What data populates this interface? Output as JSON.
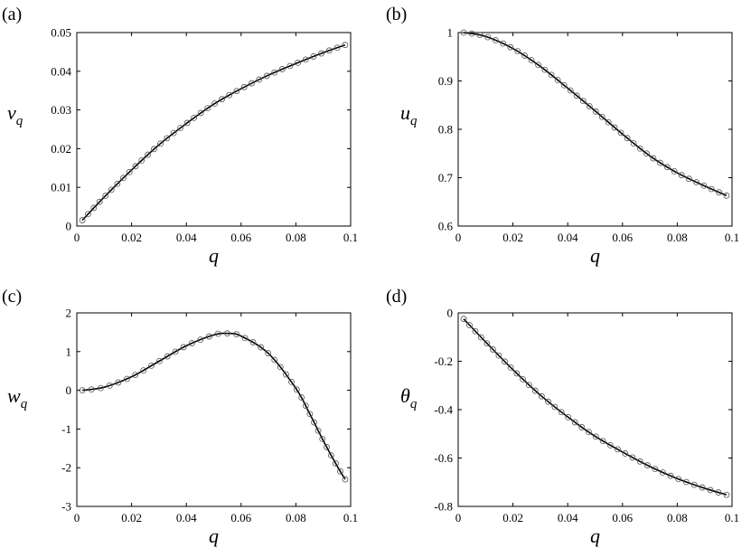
{
  "chart_data": [
    {
      "type": "line",
      "panel_label": "(a)",
      "xlabel": "q",
      "ylabel_base": "ν",
      "ylabel_sub": "q",
      "xlim": [
        0,
        0.1
      ],
      "ylim": [
        0,
        0.05
      ],
      "xticks": [
        "0",
        "0.02",
        "0.04",
        "0.06",
        "0.08",
        "0.1"
      ],
      "yticks": [
        "0",
        "0.01",
        "0.02",
        "0.03",
        "0.04",
        "0.05"
      ],
      "grid": false,
      "x": [
        0.002,
        0.01,
        0.02,
        0.03,
        0.04,
        0.05,
        0.06,
        0.07,
        0.08,
        0.09,
        0.098
      ],
      "y": [
        0.0015,
        0.0075,
        0.0145,
        0.021,
        0.0265,
        0.0315,
        0.0355,
        0.039,
        0.042,
        0.0448,
        0.0468
      ],
      "markers": "open-circle"
    },
    {
      "type": "line",
      "panel_label": "(b)",
      "xlabel": "q",
      "ylabel_base": "u",
      "ylabel_sub": "q",
      "xlim": [
        0,
        0.1
      ],
      "ylim": [
        0.6,
        1
      ],
      "xticks": [
        "0",
        "0.02",
        "0.04",
        "0.06",
        "0.08",
        "0.1"
      ],
      "yticks": [
        "0.6",
        "0.7",
        "0.8",
        "0.9",
        "1"
      ],
      "grid": false,
      "x": [
        0.002,
        0.01,
        0.02,
        0.03,
        0.04,
        0.05,
        0.06,
        0.07,
        0.08,
        0.09,
        0.098
      ],
      "y": [
        1.0,
        0.992,
        0.967,
        0.93,
        0.885,
        0.838,
        0.79,
        0.745,
        0.71,
        0.683,
        0.663
      ],
      "markers": "open-circle"
    },
    {
      "type": "line",
      "panel_label": "(c)",
      "xlabel": "q",
      "ylabel_base": "w",
      "ylabel_sub": "q",
      "xlim": [
        0,
        0.1
      ],
      "ylim": [
        -3,
        2
      ],
      "xticks": [
        "0",
        "0.02",
        "0.04",
        "0.06",
        "0.08",
        "0.1"
      ],
      "yticks": [
        "-3",
        "-2",
        "-1",
        "0",
        "1",
        "2"
      ],
      "grid": false,
      "x": [
        0.002,
        0.01,
        0.02,
        0.03,
        0.04,
        0.05,
        0.055,
        0.06,
        0.07,
        0.08,
        0.085,
        0.09,
        0.095,
        0.098
      ],
      "y": [
        0.0,
        0.08,
        0.35,
        0.75,
        1.15,
        1.43,
        1.47,
        1.4,
        0.95,
        0.05,
        -0.6,
        -1.3,
        -1.95,
        -2.3
      ],
      "markers": "open-circle"
    },
    {
      "type": "line",
      "panel_label": "(d)",
      "xlabel": "q",
      "ylabel_base": "θ",
      "ylabel_sub": "q",
      "xlim": [
        0,
        0.1
      ],
      "ylim": [
        -0.8,
        0
      ],
      "xticks": [
        "0",
        "0.02",
        "0.04",
        "0.06",
        "0.08",
        "0.1"
      ],
      "yticks": [
        "-0.8",
        "-0.6",
        "-0.4",
        "-0.2",
        "0"
      ],
      "grid": false,
      "x": [
        0.002,
        0.01,
        0.02,
        0.03,
        0.04,
        0.05,
        0.06,
        0.07,
        0.08,
        0.09,
        0.098
      ],
      "y": [
        -0.025,
        -0.12,
        -0.235,
        -0.34,
        -0.43,
        -0.51,
        -0.575,
        -0.635,
        -0.685,
        -0.725,
        -0.752
      ],
      "markers": "open-circle"
    }
  ]
}
